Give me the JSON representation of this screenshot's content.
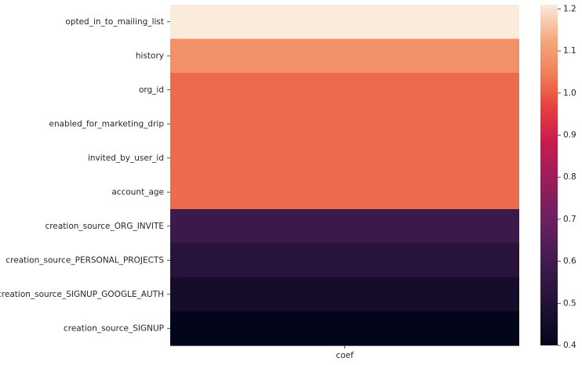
{
  "chart_data": {
    "type": "heatmap",
    "title": "",
    "xlabel": "",
    "ylabel": "",
    "x_categories": [
      "coef"
    ],
    "y_categories": [
      "opted_in_to_mailing_list",
      "history",
      "org_id",
      "enabled_for_marketing_drip",
      "invited_by_user_id",
      "account_age",
      "creation_source_ORG_INVITE",
      "creation_source_PERSONAL_PROJECTS",
      "creation_source_SIGNUP_GOOGLE_AUTH",
      "creation_source_SIGNUP"
    ],
    "values": [
      1.21,
      1.08,
      1.02,
      1.02,
      1.02,
      1.02,
      0.58,
      0.52,
      0.46,
      0.4
    ],
    "colorbar": {
      "min": 0.4,
      "max": 1.21,
      "ticks": [
        "0.4",
        "0.5",
        "0.6",
        "0.7",
        "0.8",
        "0.9",
        "1.0",
        "1.1",
        "1.2"
      ],
      "colormap": "rocket"
    },
    "legend": "right"
  }
}
